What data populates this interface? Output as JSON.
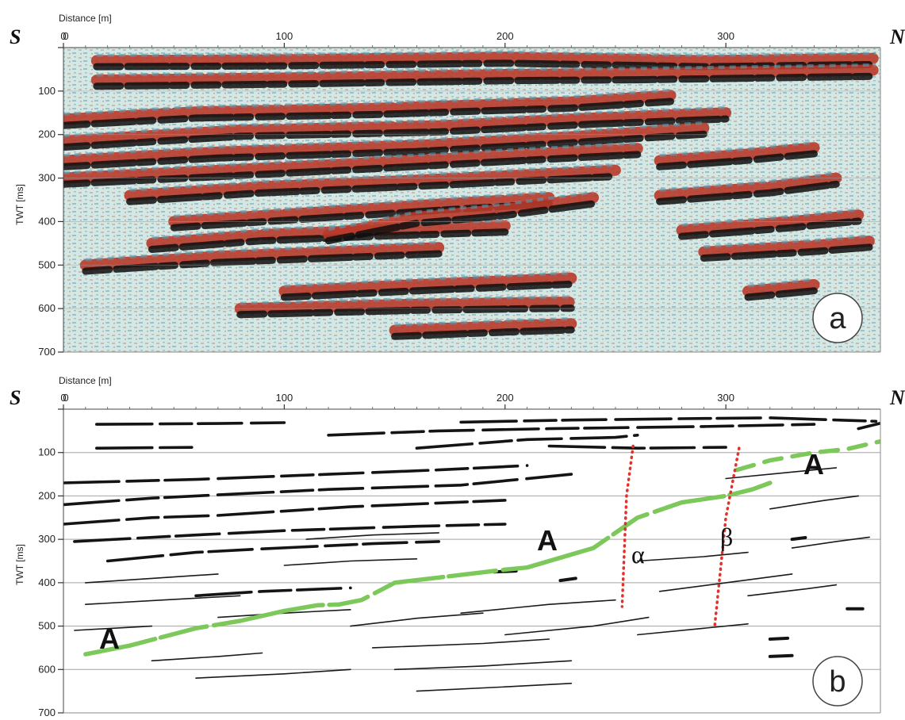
{
  "colors": {
    "seismic_bg": "#d3e8e4",
    "seismic_red": "#b83a2a",
    "seismic_black": "#0e0e0e",
    "seismic_blue": "#5f97ad",
    "horizon_A": "#7cc85a",
    "fault": "#e0322a",
    "grid": "#9a9a9a"
  },
  "panel_a": {
    "corner_left": "S",
    "corner_right": "N",
    "x_axis_title": "Distance [m]",
    "y_axis_title": "TWT [ms]",
    "label": "a"
  },
  "panel_b": {
    "corner_left": "S",
    "corner_right": "N",
    "x_axis_title": "Distance [m]",
    "y_axis_title": "TWT [ms]",
    "label": "b",
    "horizon_label": "A",
    "fault_labels": [
      "α",
      "β"
    ]
  },
  "chart_data": [
    {
      "type": "heatmap",
      "panel": "a",
      "xlabel": "Distance [m]",
      "ylabel": "TWT [ms]",
      "xlim": [
        0,
        370
      ],
      "ylim": [
        700,
        0
      ],
      "x_ticks": [
        0,
        100,
        200,
        300
      ],
      "y_ticks": [
        100,
        200,
        300,
        400,
        500,
        600,
        700
      ],
      "reflectors": [
        [
          [
            15,
            30
          ],
          [
            100,
            28
          ],
          [
            200,
            22
          ],
          [
            290,
            30
          ],
          [
            368,
            25
          ]
        ],
        [
          [
            15,
            75
          ],
          [
            100,
            70
          ],
          [
            200,
            62
          ],
          [
            260,
            60
          ],
          [
            368,
            52
          ]
        ],
        [
          [
            0,
            165
          ],
          [
            60,
            148
          ],
          [
            140,
            140
          ],
          [
            230,
            125
          ],
          [
            275,
            110
          ]
        ],
        [
          [
            0,
            215
          ],
          [
            80,
            190
          ],
          [
            170,
            180
          ],
          [
            240,
            162
          ],
          [
            300,
            150
          ]
        ],
        [
          [
            0,
            260
          ],
          [
            70,
            240
          ],
          [
            160,
            225
          ],
          [
            230,
            205
          ],
          [
            290,
            185
          ]
        ],
        [
          [
            0,
            300
          ],
          [
            80,
            280
          ],
          [
            150,
            262
          ],
          [
            210,
            245
          ],
          [
            260,
            232
          ]
        ],
        [
          [
            30,
            340
          ],
          [
            90,
            320
          ],
          [
            160,
            305
          ],
          [
            220,
            290
          ],
          [
            250,
            282
          ]
        ],
        [
          [
            50,
            400
          ],
          [
            110,
            380
          ],
          [
            170,
            360
          ],
          [
            220,
            345
          ]
        ],
        [
          [
            40,
            450
          ],
          [
            90,
            430
          ],
          [
            140,
            420
          ],
          [
            200,
            410
          ]
        ],
        [
          [
            10,
            500
          ],
          [
            70,
            480
          ],
          [
            120,
            470
          ],
          [
            170,
            460
          ]
        ],
        [
          [
            120,
            430
          ],
          [
            160,
            390
          ],
          [
            200,
            372
          ],
          [
            240,
            345
          ]
        ],
        [
          [
            100,
            560
          ],
          [
            160,
            545
          ],
          [
            230,
            530
          ]
        ],
        [
          [
            80,
            600
          ],
          [
            160,
            590
          ],
          [
            230,
            585
          ]
        ],
        [
          [
            150,
            650
          ],
          [
            200,
            640
          ],
          [
            230,
            635
          ]
        ],
        [
          [
            270,
            260
          ],
          [
            310,
            245
          ],
          [
            340,
            230
          ]
        ],
        [
          [
            270,
            340
          ],
          [
            320,
            320
          ],
          [
            350,
            300
          ]
        ],
        [
          [
            280,
            420
          ],
          [
            330,
            400
          ],
          [
            360,
            385
          ]
        ],
        [
          [
            290,
            470
          ],
          [
            340,
            455
          ],
          [
            365,
            445
          ]
        ],
        [
          [
            310,
            560
          ],
          [
            340,
            545
          ]
        ]
      ]
    },
    {
      "type": "line",
      "panel": "b",
      "xlabel": "Distance [m]",
      "ylabel": "TWT [ms]",
      "xlim": [
        0,
        370
      ],
      "ylim": [
        700,
        0
      ],
      "x_ticks": [
        0,
        100,
        200,
        300
      ],
      "y_ticks": [
        100,
        200,
        300,
        400,
        500,
        600,
        700
      ],
      "horizon_A": [
        [
          10,
          565
        ],
        [
          30,
          545
        ],
        [
          60,
          505
        ],
        [
          80,
          488
        ],
        [
          100,
          465
        ],
        [
          115,
          452
        ],
        [
          125,
          450
        ],
        [
          135,
          440
        ],
        [
          150,
          400
        ],
        [
          170,
          388
        ],
        [
          200,
          370
        ],
        [
          210,
          365
        ],
        [
          240,
          320
        ],
        [
          260,
          250
        ],
        [
          280,
          215
        ],
        [
          300,
          200
        ],
        [
          312,
          185
        ],
        [
          320,
          170
        ]
      ],
      "horizon_A_upper": [
        [
          305,
          140
        ],
        [
          320,
          118
        ],
        [
          340,
          100
        ],
        [
          355,
          92
        ],
        [
          365,
          80
        ],
        [
          372,
          72
        ]
      ],
      "faults": [
        {
          "label": "α",
          "points": [
            [
              258,
              85
            ],
            [
              255,
              200
            ],
            [
              253,
              455
            ]
          ]
        },
        {
          "label": "β",
          "points": [
            [
              306,
              90
            ],
            [
              300,
              250
            ],
            [
              295,
              498
            ]
          ]
        }
      ],
      "thick_reflectors": [
        [
          [
            15,
            35
          ],
          [
            70,
            33
          ],
          [
            100,
            31
          ]
        ],
        [
          [
            15,
            90
          ],
          [
            60,
            88
          ]
        ],
        [
          [
            0,
            170
          ],
          [
            60,
            162
          ],
          [
            120,
            150
          ],
          [
            170,
            140
          ],
          [
            210,
            130
          ]
        ],
        [
          [
            0,
            220
          ],
          [
            40,
            205
          ],
          [
            80,
            195
          ],
          [
            120,
            185
          ],
          [
            180,
            175
          ],
          [
            230,
            150
          ]
        ],
        [
          [
            0,
            265
          ],
          [
            40,
            250
          ],
          [
            70,
            245
          ],
          [
            130,
            225
          ],
          [
            200,
            210
          ]
        ],
        [
          [
            5,
            305
          ],
          [
            60,
            290
          ],
          [
            100,
            280
          ],
          [
            160,
            270
          ],
          [
            200,
            265
          ]
        ],
        [
          [
            20,
            350
          ],
          [
            60,
            330
          ],
          [
            90,
            322
          ],
          [
            140,
            310
          ],
          [
            170,
            305
          ]
        ],
        [
          [
            60,
            430
          ],
          [
            90,
            420
          ],
          [
            130,
            412
          ]
        ],
        [
          [
            160,
            90
          ],
          [
            210,
            70
          ],
          [
            250,
            65
          ],
          [
            260,
            60
          ]
        ],
        [
          [
            180,
            30
          ],
          [
            230,
            25
          ],
          [
            280,
            22
          ],
          [
            320,
            20
          ],
          [
            368,
            28
          ]
        ],
        [
          [
            120,
            60
          ],
          [
            170,
            50
          ],
          [
            220,
            45
          ],
          [
            290,
            40
          ],
          [
            340,
            35
          ]
        ],
        [
          [
            220,
            85
          ],
          [
            260,
            90
          ],
          [
            300,
            88
          ]
        ],
        [
          [
            360,
            45
          ],
          [
            372,
            30
          ]
        ]
      ],
      "thin_reflectors": [
        [
          [
            10,
            400
          ],
          [
            40,
            390
          ],
          [
            70,
            380
          ]
        ],
        [
          [
            10,
            450
          ],
          [
            45,
            440
          ],
          [
            80,
            430
          ]
        ],
        [
          [
            5,
            510
          ],
          [
            40,
            500
          ]
        ],
        [
          [
            40,
            580
          ],
          [
            70,
            570
          ],
          [
            90,
            562
          ]
        ],
        [
          [
            60,
            620
          ],
          [
            100,
            610
          ],
          [
            130,
            600
          ]
        ],
        [
          [
            130,
            500
          ],
          [
            160,
            482
          ],
          [
            190,
            470
          ]
        ],
        [
          [
            140,
            550
          ],
          [
            190,
            540
          ],
          [
            220,
            530
          ]
        ],
        [
          [
            150,
            600
          ],
          [
            190,
            592
          ],
          [
            230,
            580
          ]
        ],
        [
          [
            160,
            650
          ],
          [
            200,
            640
          ],
          [
            230,
            632
          ]
        ],
        [
          [
            180,
            470
          ],
          [
            220,
            450
          ],
          [
            250,
            440
          ]
        ],
        [
          [
            200,
            520
          ],
          [
            240,
            500
          ],
          [
            265,
            480
          ]
        ],
        [
          [
            260,
            350
          ],
          [
            290,
            340
          ],
          [
            310,
            330
          ]
        ],
        [
          [
            270,
            420
          ],
          [
            300,
            400
          ],
          [
            330,
            380
          ]
        ],
        [
          [
            260,
            520
          ],
          [
            290,
            505
          ],
          [
            310,
            495
          ]
        ],
        [
          [
            320,
            230
          ],
          [
            345,
            210
          ],
          [
            360,
            200
          ]
        ],
        [
          [
            330,
            320
          ],
          [
            350,
            305
          ],
          [
            365,
            295
          ]
        ],
        [
          [
            310,
            430
          ],
          [
            335,
            415
          ],
          [
            350,
            405
          ]
        ],
        [
          [
            300,
            160
          ],
          [
            330,
            145
          ],
          [
            350,
            135
          ]
        ],
        [
          [
            110,
            300
          ],
          [
            140,
            290
          ],
          [
            170,
            285
          ]
        ],
        [
          [
            100,
            360
          ],
          [
            130,
            350
          ],
          [
            160,
            345
          ]
        ],
        [
          [
            70,
            480
          ],
          [
            100,
            470
          ],
          [
            130,
            462
          ]
        ]
      ],
      "short_dashes": [
        [
          [
            320,
            570
          ],
          [
            330,
            568
          ]
        ],
        [
          [
            320,
            530
          ],
          [
            328,
            528
          ]
        ],
        [
          [
            355,
            460
          ],
          [
            362,
            460
          ]
        ],
        [
          [
            330,
            300
          ],
          [
            336,
            296
          ]
        ],
        [
          [
            225,
            395
          ],
          [
            232,
            390
          ]
        ],
        [
          [
            195,
            375
          ],
          [
            205,
            373
          ]
        ]
      ]
    }
  ]
}
